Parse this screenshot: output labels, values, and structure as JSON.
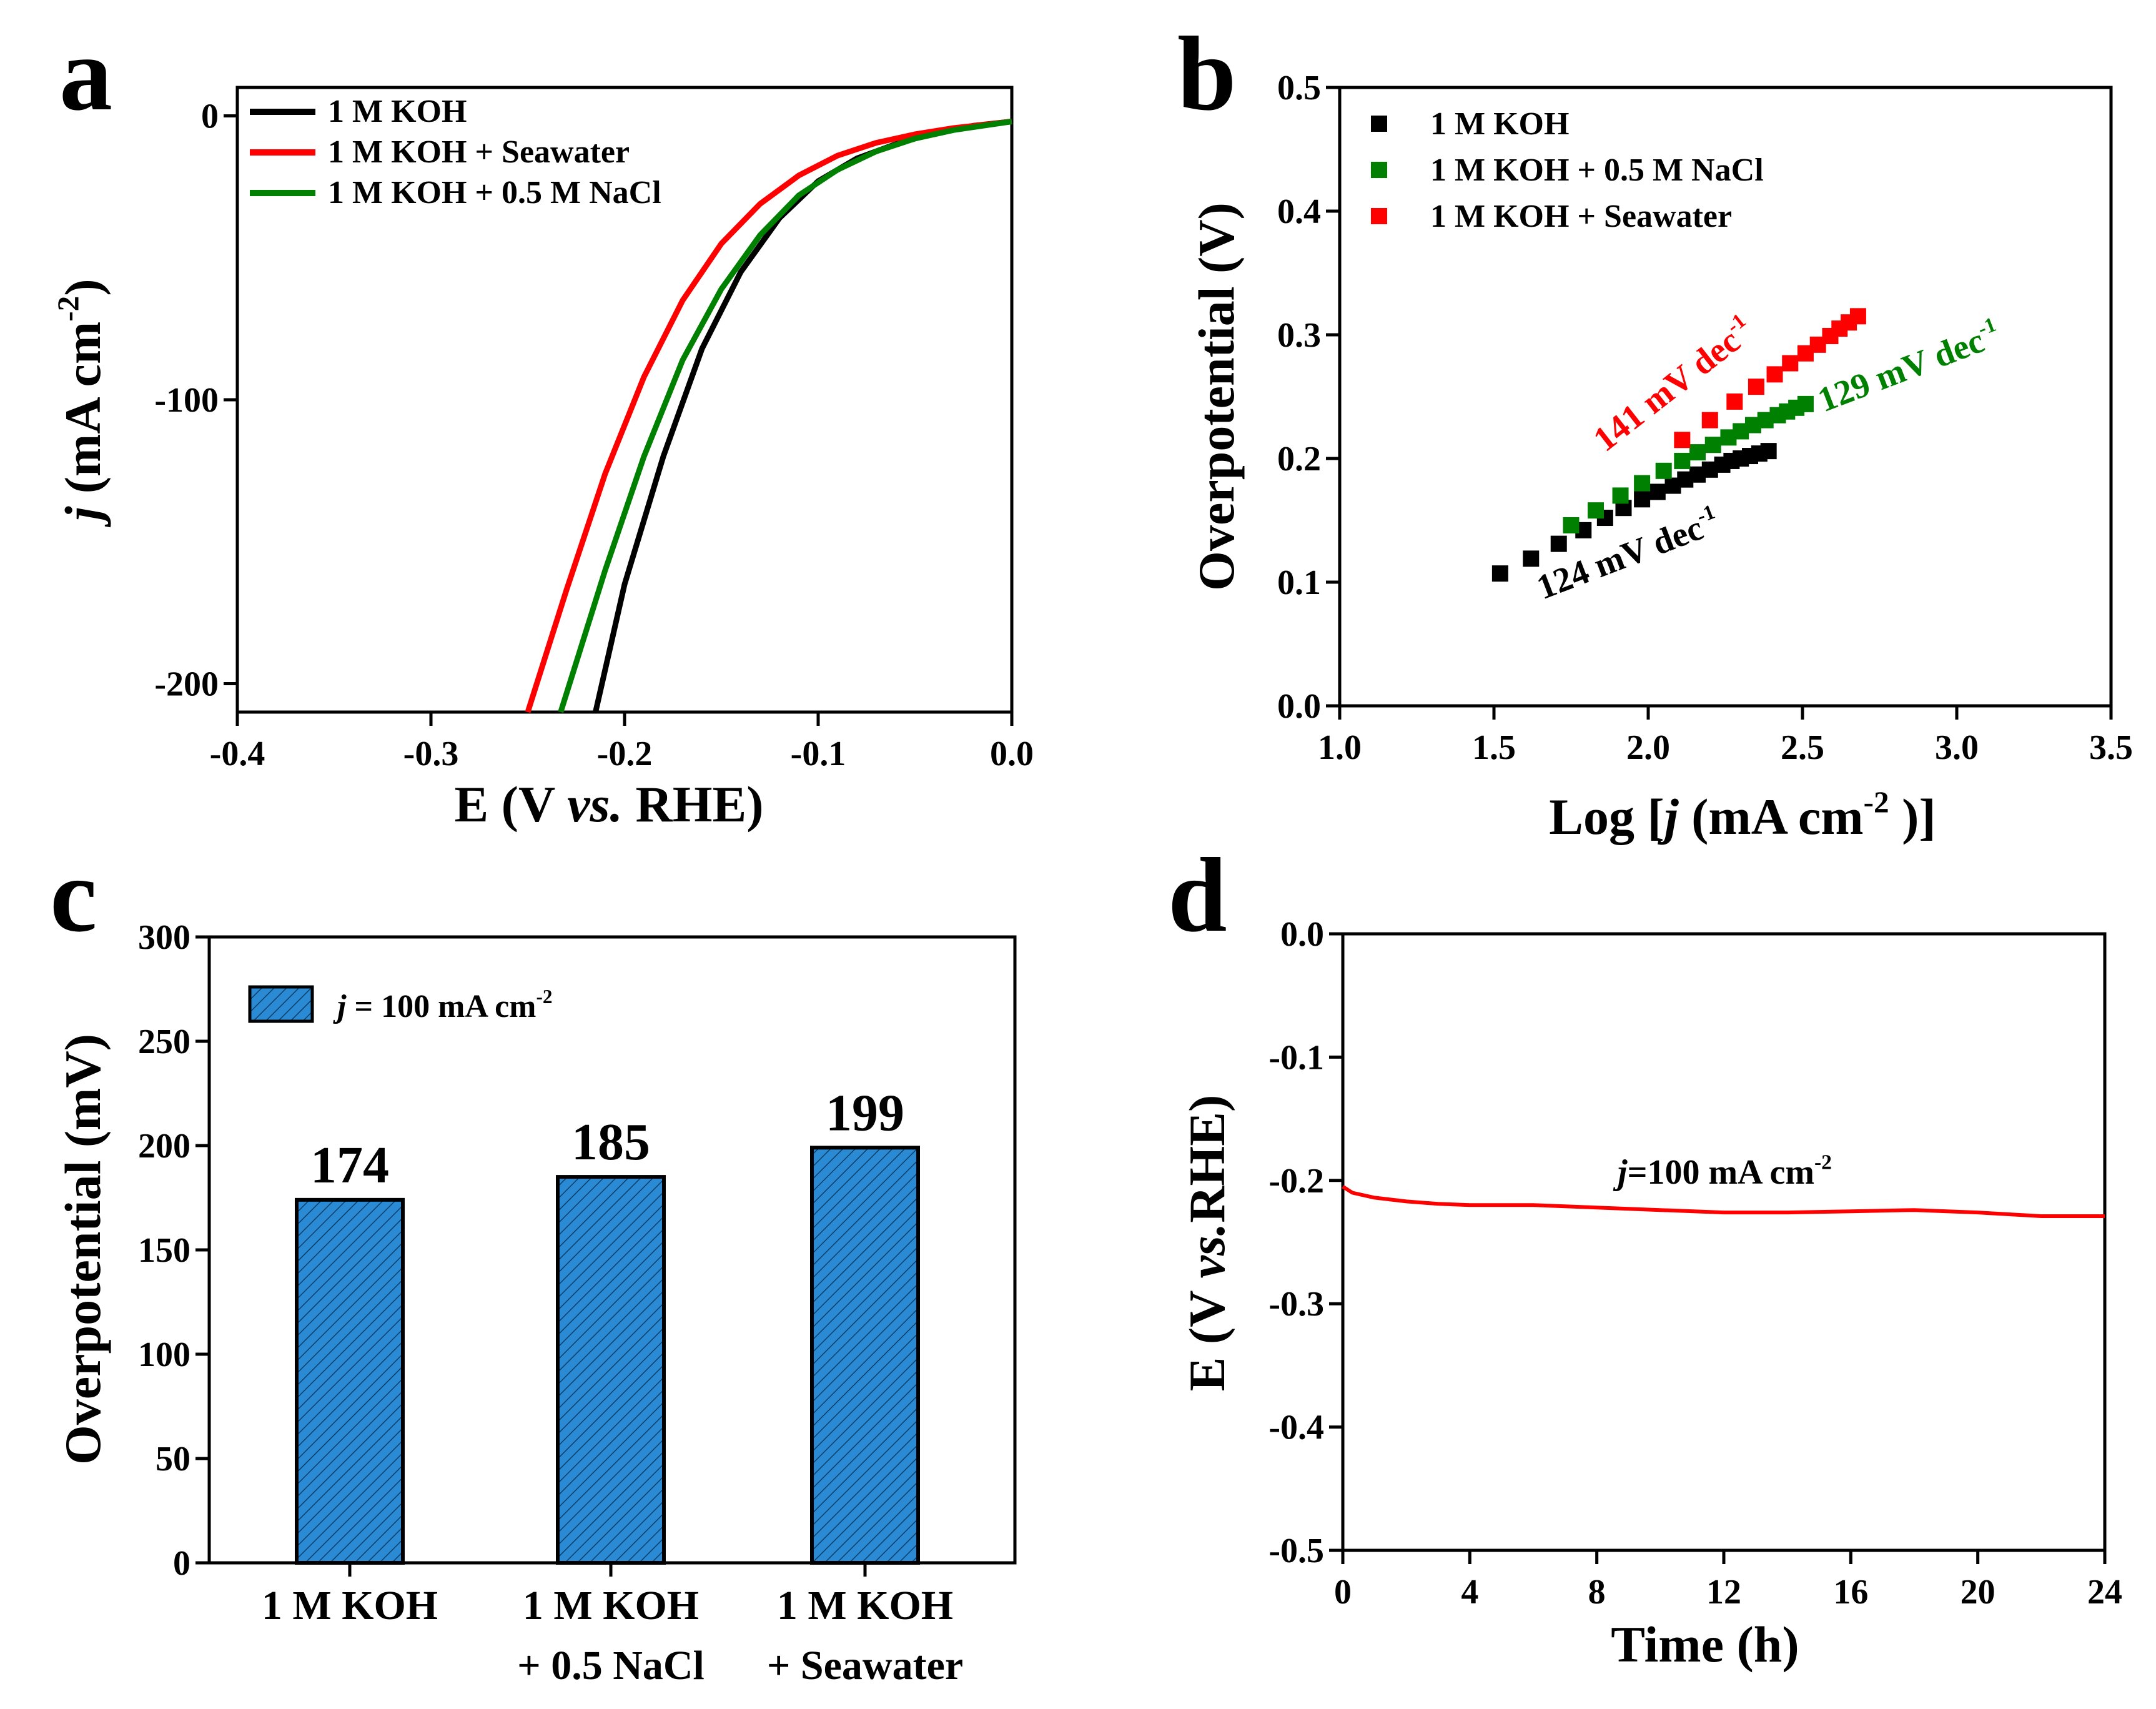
{
  "chart_data": [
    {
      "panel": "a",
      "type": "line",
      "xlabel_parts": [
        "E (V ",
        "vs.",
        " RHE)"
      ],
      "ylabel_parts": [
        "j",
        " (mA cm",
        "-2",
        ")"
      ],
      "xlim": [
        -0.4,
        0.0
      ],
      "ylim": [
        -210,
        10
      ],
      "xticks": [
        -0.4,
        -0.3,
        -0.2,
        -0.1,
        0.0
      ],
      "xtick_labels": [
        "-0.4",
        "-0.3",
        "-0.2",
        "-0.1",
        "0.0"
      ],
      "yticks": [
        0,
        -100,
        -200
      ],
      "ytick_labels": [
        "0",
        "-100",
        "-200"
      ],
      "legend_position": "top-left",
      "series": [
        {
          "name": "1 M KOH",
          "color": "#000000",
          "x": [
            -0.215,
            -0.2,
            -0.18,
            -0.16,
            -0.14,
            -0.12,
            -0.1,
            -0.08,
            -0.06,
            -0.04,
            -0.02,
            0.0
          ],
          "y": [
            -210,
            -165,
            -120,
            -82,
            -55,
            -36,
            -23,
            -15,
            -10,
            -6,
            -3.5,
            -2
          ]
        },
        {
          "name": "1 M KOH + Seawater",
          "color": "#ff0000",
          "x": [
            -0.25,
            -0.23,
            -0.21,
            -0.19,
            -0.17,
            -0.15,
            -0.13,
            -0.11,
            -0.09,
            -0.07,
            -0.05,
            -0.03,
            -0.01,
            0.0
          ],
          "y": [
            -210,
            -167,
            -126,
            -92,
            -65,
            -45,
            -31,
            -21,
            -14,
            -9.5,
            -6.5,
            -4.3,
            -2.8,
            -2
          ]
        },
        {
          "name": "1 M KOH + 0.5 M NaCl",
          "color": "#008000",
          "x": [
            -0.233,
            -0.21,
            -0.19,
            -0.17,
            -0.15,
            -0.13,
            -0.11,
            -0.09,
            -0.07,
            -0.05,
            -0.03,
            -0.01,
            0.0
          ],
          "y": [
            -210,
            -160,
            -120,
            -86,
            -61,
            -42,
            -28,
            -19,
            -12.5,
            -8,
            -5,
            -3,
            -2
          ]
        }
      ]
    },
    {
      "panel": "b",
      "type": "scatter",
      "xlabel_parts": [
        "Log [",
        "j",
        " (mA cm",
        "-2",
        " )]"
      ],
      "ylabel": "Overpotential (V)",
      "xlim": [
        1.0,
        3.5
      ],
      "ylim": [
        0.0,
        0.5
      ],
      "xticks": [
        1.0,
        1.5,
        2.0,
        2.5,
        3.0,
        3.5
      ],
      "xtick_labels": [
        "1.0",
        "1.5",
        "2.0",
        "2.5",
        "3.0",
        "3.5"
      ],
      "yticks": [
        0.0,
        0.1,
        0.2,
        0.3,
        0.4,
        0.5
      ],
      "ytick_labels": [
        "0.0",
        "0.1",
        "0.2",
        "0.3",
        "0.4",
        "0.5"
      ],
      "legend_position": "top-left",
      "series": [
        {
          "name": "1 M KOH",
          "color": "#000000",
          "slope_text": "124 mV dec",
          "slope_sup": "-1",
          "x": [
            1.52,
            1.62,
            1.71,
            1.79,
            1.86,
            1.92,
            1.98,
            2.03,
            2.08,
            2.12,
            2.16,
            2.2,
            2.24,
            2.27,
            2.3,
            2.33,
            2.36,
            2.39
          ],
          "y": [
            0.107,
            0.119,
            0.131,
            0.142,
            0.152,
            0.16,
            0.167,
            0.173,
            0.178,
            0.183,
            0.187,
            0.191,
            0.195,
            0.198,
            0.2,
            0.202,
            0.204,
            0.206
          ]
        },
        {
          "name": "1 M KOH + 0.5 M NaCl",
          "color": "#008000",
          "slope_text": "129 mV dec",
          "slope_sup": "-1",
          "x": [
            1.75,
            1.83,
            1.91,
            1.98,
            2.05,
            2.11,
            2.16,
            2.21,
            2.26,
            2.3,
            2.34,
            2.38,
            2.42,
            2.45,
            2.48,
            2.51
          ],
          "y": [
            0.146,
            0.158,
            0.17,
            0.18,
            0.19,
            0.198,
            0.205,
            0.211,
            0.217,
            0.222,
            0.227,
            0.231,
            0.235,
            0.238,
            0.241,
            0.244
          ]
        },
        {
          "name": "1 M KOH + Seawater",
          "color": "#ff0000",
          "slope_text": "141 mV dec",
          "slope_sup": "-1",
          "x": [
            2.11,
            2.2,
            2.28,
            2.35,
            2.41,
            2.46,
            2.51,
            2.55,
            2.59,
            2.62,
            2.65,
            2.68
          ],
          "y": [
            0.215,
            0.231,
            0.246,
            0.258,
            0.268,
            0.277,
            0.285,
            0.292,
            0.299,
            0.305,
            0.31,
            0.315
          ]
        }
      ]
    },
    {
      "panel": "c",
      "type": "bar",
      "ylabel": "Overpotential (mV)",
      "ylim": [
        0,
        300
      ],
      "yticks": [
        0,
        50,
        100,
        150,
        200,
        250,
        300
      ],
      "ytick_labels": [
        "0",
        "50",
        "100",
        "150",
        "200",
        "250",
        "300"
      ],
      "categories": [
        [
          "1 M KOH"
        ],
        [
          "1 M KOH",
          "+ 0.5 NaCl"
        ],
        [
          "1 M KOH",
          "+ Seawater"
        ]
      ],
      "values": [
        174,
        185,
        199
      ],
      "value_labels": [
        "174",
        "185",
        "199"
      ],
      "bar_color": "#2a8bd4",
      "legend_parts": [
        "j",
        " = 100 mA cm",
        "-2"
      ],
      "legend_position": "top-left"
    },
    {
      "panel": "d",
      "type": "line",
      "xlabel": "Time (h)",
      "ylabel_parts": [
        "E (V ",
        "vs.",
        "RHE)"
      ],
      "xlim": [
        0,
        24
      ],
      "ylim": [
        -0.5,
        0.0
      ],
      "xticks": [
        0,
        4,
        8,
        12,
        16,
        20,
        24
      ],
      "xtick_labels": [
        "0",
        "4",
        "8",
        "12",
        "16",
        "20",
        "24"
      ],
      "yticks": [
        0.0,
        -0.1,
        -0.2,
        -0.3,
        -0.4,
        -0.5
      ],
      "ytick_labels": [
        "0.0",
        "-0.1",
        "-0.2",
        "-0.3",
        "-0.4",
        "-0.5"
      ],
      "annotation_parts": [
        "j",
        "=100 mA cm",
        "-2"
      ],
      "series": [
        {
          "name": "j=100 mA cm-2",
          "color": "#ff0000",
          "x": [
            0,
            0.3,
            1,
            2,
            3,
            4,
            6,
            8,
            10,
            12,
            14,
            16,
            18,
            20,
            22,
            24
          ],
          "y": [
            -0.205,
            -0.21,
            -0.214,
            -0.217,
            -0.219,
            -0.22,
            -0.22,
            -0.222,
            -0.224,
            -0.226,
            -0.226,
            -0.225,
            -0.224,
            -0.226,
            -0.229,
            -0.229
          ]
        }
      ]
    }
  ],
  "panel_labels": [
    "a",
    "b",
    "c",
    "d"
  ]
}
